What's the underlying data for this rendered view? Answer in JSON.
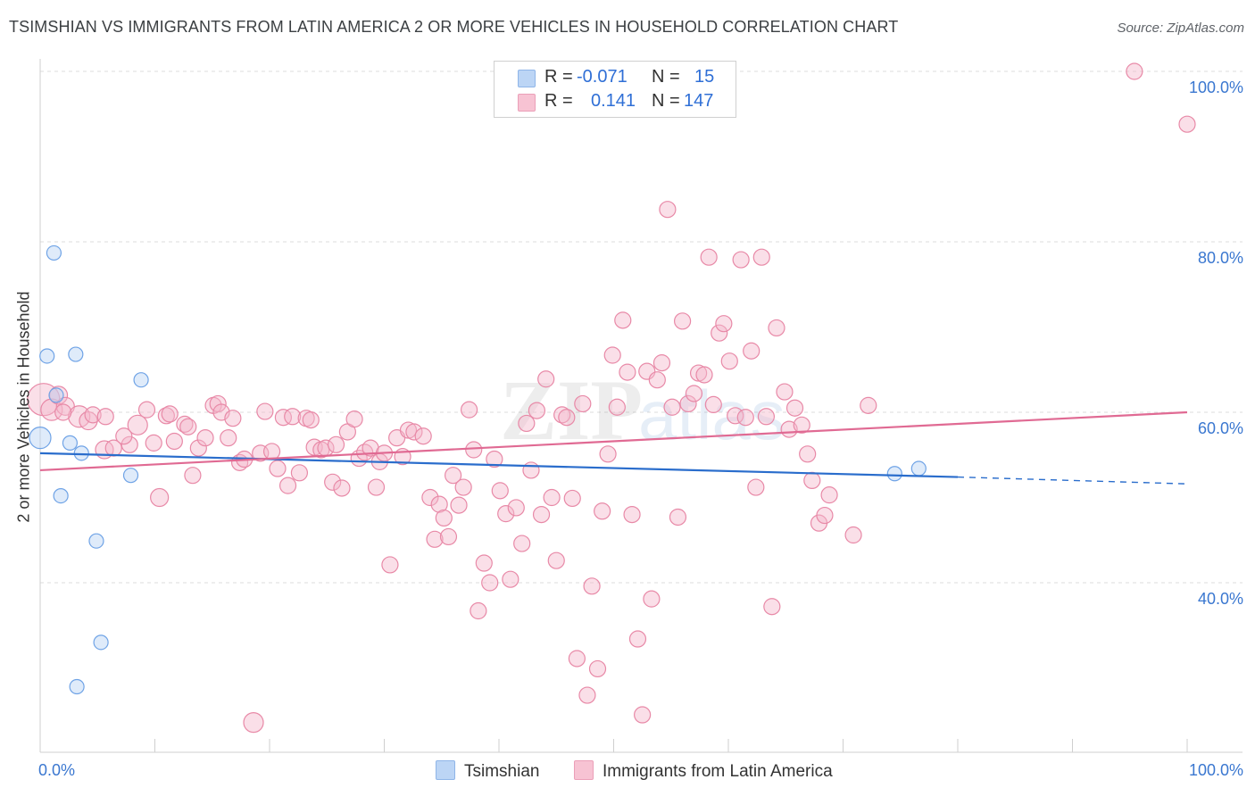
{
  "title": "TSIMSHIAN VS IMMIGRANTS FROM LATIN AMERICA 2 OR MORE VEHICLES IN HOUSEHOLD CORRELATION CHART",
  "source": "Source: ZipAtlas.com",
  "watermark": "ZIPatlas",
  "legend": {
    "rows": [
      {
        "r_label": "R =",
        "r_value": "-0.071",
        "n_label": "N =",
        "n_value": "15",
        "color": "#9fc3f0"
      },
      {
        "r_label": "R =",
        "r_value": "0.141",
        "n_label": "N =",
        "n_value": "147",
        "color": "#f5b5c9"
      }
    ]
  },
  "bottom_legend": {
    "series_a": "Tsimshian",
    "series_b": "Immigrants from Latin America"
  },
  "chart_data": {
    "type": "scatter",
    "xlabel": "",
    "ylabel": "2 or more Vehicles in Household",
    "xlim": [
      0,
      100
    ],
    "ylim": [
      20,
      102
    ],
    "x_tick_labels": [
      "0.0%",
      "100.0%"
    ],
    "y_tick_labels": [
      "40.0%",
      "60.0%",
      "80.0%",
      "100.0%"
    ],
    "y_ticks": [
      40,
      60,
      80,
      100
    ],
    "grid": "horizontal dashed",
    "series": [
      {
        "name": "Tsimshian",
        "color": "#6fa3e6",
        "fill": "#b9d3f5",
        "trend": {
          "x0": 0,
          "y0": 55.2,
          "x1": 80,
          "y1": 52.4,
          "dashed_to_x": 100,
          "dashed_y": 51.6,
          "color": "#2a6dcc"
        },
        "points": [
          [
            0,
            57,
            12
          ],
          [
            1.2,
            78.7,
            8
          ],
          [
            0.6,
            66.6,
            8
          ],
          [
            3.1,
            66.8,
            8
          ],
          [
            8.8,
            63.8,
            8
          ],
          [
            1.4,
            62,
            8
          ],
          [
            2.6,
            56.4,
            8
          ],
          [
            3.6,
            55.2,
            8
          ],
          [
            1.8,
            50.2,
            8
          ],
          [
            7.9,
            52.6,
            8
          ],
          [
            4.9,
            44.9,
            8
          ],
          [
            5.3,
            33,
            8
          ],
          [
            3.2,
            27.8,
            8
          ],
          [
            74.5,
            52.8,
            8
          ],
          [
            76.6,
            53.4,
            8
          ]
        ]
      },
      {
        "name": "Immigrants from Latin America",
        "color": "#e889a7",
        "fill": "#f5b9cb",
        "trend": {
          "x0": 0,
          "y0": 53.2,
          "x1": 100,
          "y1": 60,
          "color": "#e06a93"
        },
        "points": [
          [
            0.3,
            61.5,
            18
          ],
          [
            1.0,
            60.3,
            12
          ],
          [
            1.6,
            62.0,
            10
          ],
          [
            2.2,
            60.7,
            10
          ],
          [
            3.4,
            59.5,
            12
          ],
          [
            4.2,
            59.0,
            10
          ],
          [
            4.6,
            59.7,
            9
          ],
          [
            5.7,
            59.5,
            9
          ],
          [
            2.0,
            60.0,
            9
          ],
          [
            5.6,
            55.6,
            10
          ],
          [
            6.4,
            55.8,
            9
          ],
          [
            7.8,
            56.2,
            9
          ],
          [
            7.3,
            57.2,
            9
          ],
          [
            8.5,
            58.5,
            11
          ],
          [
            9.3,
            60.3,
            9
          ],
          [
            9.9,
            56.4,
            9
          ],
          [
            10.4,
            50.0,
            10
          ],
          [
            11.0,
            59.6,
            9
          ],
          [
            11.3,
            59.8,
            9
          ],
          [
            11.7,
            56.6,
            9
          ],
          [
            12.6,
            58.6,
            9
          ],
          [
            12.9,
            58.3,
            9
          ],
          [
            13.3,
            52.6,
            9
          ],
          [
            13.8,
            55.8,
            9
          ],
          [
            14.4,
            57.0,
            9
          ],
          [
            15.1,
            60.8,
            9
          ],
          [
            15.5,
            61.0,
            9
          ],
          [
            15.8,
            60.0,
            9
          ],
          [
            16.4,
            57.0,
            9
          ],
          [
            16.8,
            59.3,
            9
          ],
          [
            17.4,
            54.1,
            9
          ],
          [
            17.8,
            54.5,
            9
          ],
          [
            18.6,
            23.6,
            11
          ],
          [
            19.2,
            55.2,
            9
          ],
          [
            19.6,
            60.1,
            9
          ],
          [
            20.2,
            55.4,
            9
          ],
          [
            20.7,
            53.4,
            9
          ],
          [
            21.2,
            59.4,
            9
          ],
          [
            21.6,
            51.4,
            9
          ],
          [
            22.0,
            59.5,
            9
          ],
          [
            22.6,
            52.9,
            9
          ],
          [
            23.2,
            59.3,
            9
          ],
          [
            23.6,
            59.1,
            9
          ],
          [
            23.9,
            55.9,
            9
          ],
          [
            24.5,
            55.6,
            9
          ],
          [
            24.9,
            55.8,
            9
          ],
          [
            25.5,
            51.8,
            9
          ],
          [
            25.8,
            56.2,
            9
          ],
          [
            26.3,
            51.1,
            9
          ],
          [
            26.8,
            57.7,
            9
          ],
          [
            27.4,
            59.2,
            9
          ],
          [
            27.8,
            54.6,
            9
          ],
          [
            28.3,
            55.3,
            9
          ],
          [
            28.8,
            55.8,
            9
          ],
          [
            29.3,
            51.2,
            9
          ],
          [
            29.6,
            54.2,
            9
          ],
          [
            30.0,
            55.2,
            9
          ],
          [
            30.5,
            42.1,
            9
          ],
          [
            31.1,
            57.0,
            9
          ],
          [
            31.6,
            54.8,
            9
          ],
          [
            32.1,
            57.9,
            9
          ],
          [
            32.6,
            57.7,
            9
          ],
          [
            33.4,
            57.2,
            9
          ],
          [
            34.0,
            50.0,
            9
          ],
          [
            34.4,
            45.1,
            9
          ],
          [
            34.8,
            49.2,
            9
          ],
          [
            35.2,
            47.6,
            9
          ],
          [
            35.6,
            45.4,
            9
          ],
          [
            36.0,
            52.6,
            9
          ],
          [
            36.5,
            49.1,
            9
          ],
          [
            36.9,
            51.2,
            9
          ],
          [
            37.4,
            60.3,
            9
          ],
          [
            37.8,
            55.6,
            9
          ],
          [
            38.2,
            36.7,
            9
          ],
          [
            38.7,
            42.3,
            9
          ],
          [
            39.2,
            40.0,
            9
          ],
          [
            39.6,
            54.5,
            9
          ],
          [
            40.1,
            50.8,
            9
          ],
          [
            40.6,
            48.1,
            9
          ],
          [
            41.0,
            40.4,
            9
          ],
          [
            41.5,
            48.8,
            9
          ],
          [
            42.0,
            44.6,
            9
          ],
          [
            42.4,
            58.7,
            9
          ],
          [
            42.8,
            53.2,
            9
          ],
          [
            43.3,
            60.2,
            9
          ],
          [
            43.7,
            48.0,
            9
          ],
          [
            44.1,
            63.9,
            9
          ],
          [
            44.6,
            50.0,
            9
          ],
          [
            45.0,
            42.6,
            9
          ],
          [
            45.5,
            59.7,
            9
          ],
          [
            45.9,
            59.4,
            9
          ],
          [
            46.4,
            49.9,
            9
          ],
          [
            46.8,
            31.1,
            9
          ],
          [
            47.3,
            61.0,
            9
          ],
          [
            47.7,
            26.8,
            9
          ],
          [
            48.1,
            39.6,
            9
          ],
          [
            48.6,
            29.9,
            9
          ],
          [
            49.0,
            48.4,
            9
          ],
          [
            49.5,
            55.1,
            9
          ],
          [
            49.9,
            66.7,
            9
          ],
          [
            50.3,
            60.6,
            9
          ],
          [
            50.8,
            70.8,
            9
          ],
          [
            51.2,
            64.7,
            9
          ],
          [
            51.6,
            48.0,
            9
          ],
          [
            52.1,
            33.4,
            9
          ],
          [
            52.5,
            24.5,
            9
          ],
          [
            52.9,
            64.8,
            9
          ],
          [
            53.3,
            38.1,
            9
          ],
          [
            53.8,
            63.8,
            9
          ],
          [
            54.2,
            65.8,
            9
          ],
          [
            54.7,
            83.8,
            9
          ],
          [
            55.1,
            60.6,
            9
          ],
          [
            55.6,
            47.7,
            9
          ],
          [
            56.0,
            70.7,
            9
          ],
          [
            56.5,
            61.0,
            9
          ],
          [
            57.0,
            62.2,
            9
          ],
          [
            57.4,
            64.6,
            9
          ],
          [
            57.9,
            64.4,
            9
          ],
          [
            58.3,
            78.2,
            9
          ],
          [
            58.7,
            60.9,
            9
          ],
          [
            59.2,
            69.3,
            9
          ],
          [
            59.6,
            70.4,
            9
          ],
          [
            60.1,
            66.0,
            9
          ],
          [
            60.6,
            59.6,
            9
          ],
          [
            61.1,
            77.9,
            9
          ],
          [
            61.5,
            59.4,
            9
          ],
          [
            62.0,
            67.2,
            9
          ],
          [
            62.4,
            51.2,
            9
          ],
          [
            62.9,
            78.2,
            9
          ],
          [
            63.3,
            59.5,
            9
          ],
          [
            63.8,
            37.2,
            9
          ],
          [
            64.2,
            69.9,
            9
          ],
          [
            64.9,
            62.4,
            9
          ],
          [
            65.3,
            58.0,
            9
          ],
          [
            65.8,
            60.5,
            9
          ],
          [
            66.4,
            58.5,
            9
          ],
          [
            66.9,
            55.1,
            9
          ],
          [
            67.3,
            52.0,
            9
          ],
          [
            67.9,
            47.0,
            9
          ],
          [
            68.4,
            47.9,
            9
          ],
          [
            68.8,
            50.3,
            9
          ],
          [
            70.9,
            45.6,
            9
          ],
          [
            72.2,
            60.8,
            9
          ],
          [
            95.4,
            100.0,
            9
          ],
          [
            100.0,
            93.8,
            9
          ]
        ]
      }
    ]
  }
}
